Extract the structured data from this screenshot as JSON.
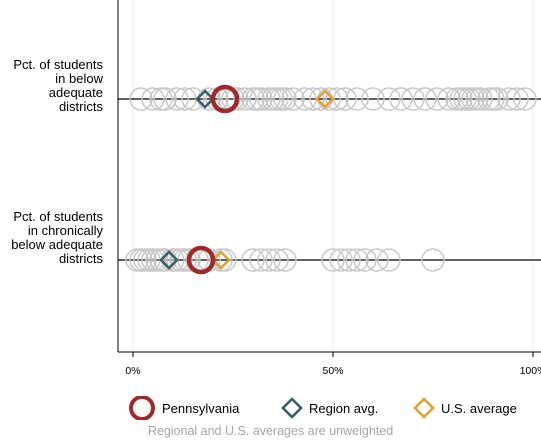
{
  "chart_data": {
    "type": "scatter",
    "xlim": [
      0,
      100
    ],
    "x_ticks": [
      "0%",
      "50%",
      "100%"
    ],
    "x_tick_values": [
      0,
      50,
      100
    ],
    "grid": true,
    "legend_position": "bottom",
    "note": "Regional and U.S. averages are unweighted",
    "rows": [
      {
        "label": "Pct. of students in below adequate districts",
        "others": [
          2,
          5,
          7,
          8,
          11,
          13,
          15,
          19,
          21,
          24,
          25,
          26,
          28,
          30,
          31,
          32,
          34,
          35,
          36,
          37,
          38,
          40,
          43,
          45,
          47,
          49,
          51,
          53,
          56,
          60,
          64,
          67,
          70,
          73,
          76,
          79,
          81,
          82,
          83,
          84,
          85,
          86,
          87,
          89,
          90,
          91,
          94,
          96,
          98
        ],
        "pennsylvania": 23,
        "region_avg": 18,
        "us_average": 48
      },
      {
        "label": "Pct. of students in chronically below adequate districts",
        "others": [
          1,
          2,
          3,
          4,
          5,
          6,
          7,
          8,
          10,
          11,
          12,
          13,
          14,
          16,
          17,
          19,
          22,
          23,
          30,
          32,
          34,
          36,
          38,
          50,
          52,
          54,
          56,
          58,
          61,
          64,
          75
        ],
        "pennsylvania": 17,
        "region_avg": 9,
        "us_average": 22
      }
    ],
    "series": [
      {
        "name": "Pennsylvania",
        "color": "#9e2a2b",
        "marker": "circle"
      },
      {
        "name": "Region avg.",
        "color": "#3a5f6b",
        "marker": "diamond"
      },
      {
        "name": "U.S. average",
        "color": "#e0a236",
        "marker": "diamond"
      }
    ],
    "other_color": "#c8c8c8"
  }
}
